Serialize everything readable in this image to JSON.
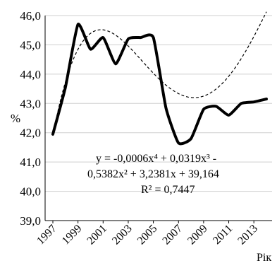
{
  "chart_data": {
    "type": "line",
    "title": "",
    "xlabel": "Рік",
    "ylabel": "%",
    "ylim": [
      39.0,
      46.0
    ],
    "xlim": [
      1997,
      2014
    ],
    "y_ticks": [
      "39,0",
      "40,0",
      "41,0",
      "42,0",
      "43,0",
      "44,0",
      "45,0",
      "46,0"
    ],
    "x_ticks": [
      "1997",
      "1999",
      "2001",
      "2003",
      "2005",
      "2007",
      "2009",
      "2011",
      "2013"
    ],
    "grid": "horizontal",
    "series": [
      {
        "name": "",
        "style": "solid",
        "color": "#000000",
        "x": [
          1997,
          1998,
          1999,
          2000,
          2001,
          2002,
          2003,
          2004,
          2005,
          2006,
          2007,
          2008,
          2009,
          2010,
          2011,
          2012,
          2013,
          2014
        ],
        "y": [
          41.95,
          43.55,
          45.7,
          44.85,
          45.25,
          44.35,
          45.2,
          45.25,
          45.25,
          42.85,
          41.65,
          41.8,
          42.8,
          42.9,
          42.6,
          43.0,
          43.05,
          43.15
        ]
      },
      {
        "name": "",
        "style": "dashed",
        "color": "#000000",
        "trendline": "polynomial",
        "coefficients": [
          -0.0006,
          0.0319,
          -0.5382,
          3.2381,
          39.164
        ]
      }
    ],
    "annotations": {
      "equation_line1": "y = -0,0006x⁴ + 0,0319x³ -",
      "equation_line2": "0,5382x² + 3,2381x + 39,164",
      "r_squared": "R² = 0,7447"
    }
  }
}
